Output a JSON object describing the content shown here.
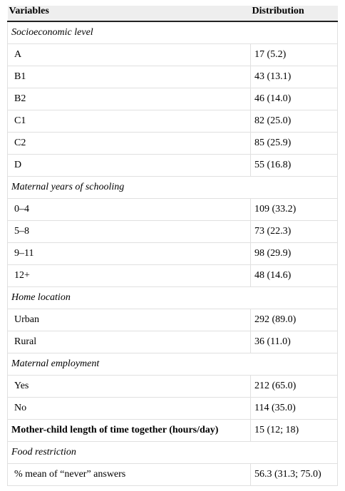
{
  "table": {
    "header": [
      "Variables",
      "Distribution"
    ],
    "rows": [
      {
        "section": "Socioeconomic level"
      },
      {
        "label": "A",
        "value": "17 (5.2)"
      },
      {
        "label": "B1",
        "value": "43 (13.1)"
      },
      {
        "label": "B2",
        "value": "46 (14.0)"
      },
      {
        "label": "C1",
        "value": "82 (25.0)"
      },
      {
        "label": "C2",
        "value": "85 (25.9)"
      },
      {
        "label": "D",
        "value": "55 (16.8)"
      },
      {
        "section": "Maternal years of schooling"
      },
      {
        "label": "0–4",
        "value": "109 (33.2)"
      },
      {
        "label": "5–8",
        "value": "73 (22.3)"
      },
      {
        "label": "9–11",
        "value": "98 (29.9)"
      },
      {
        "label": "12+",
        "value": "48 (14.6)"
      },
      {
        "section": "Home location"
      },
      {
        "label": "Urban",
        "value": "292 (89.0)"
      },
      {
        "label": "Rural",
        "value": "36 (11.0)"
      },
      {
        "section": "Maternal employment"
      },
      {
        "label": "Yes",
        "value": "212 (65.0)"
      },
      {
        "label": "No",
        "value": "114 (35.0)"
      },
      {
        "label": "Mother-child length of time together (hours/day)",
        "value": "15 (12; 18)",
        "bold": true
      },
      {
        "section": "Food restriction"
      },
      {
        "label": "% mean of “never” answers",
        "value": "56.3 (31.3; 75.0)"
      }
    ]
  }
}
